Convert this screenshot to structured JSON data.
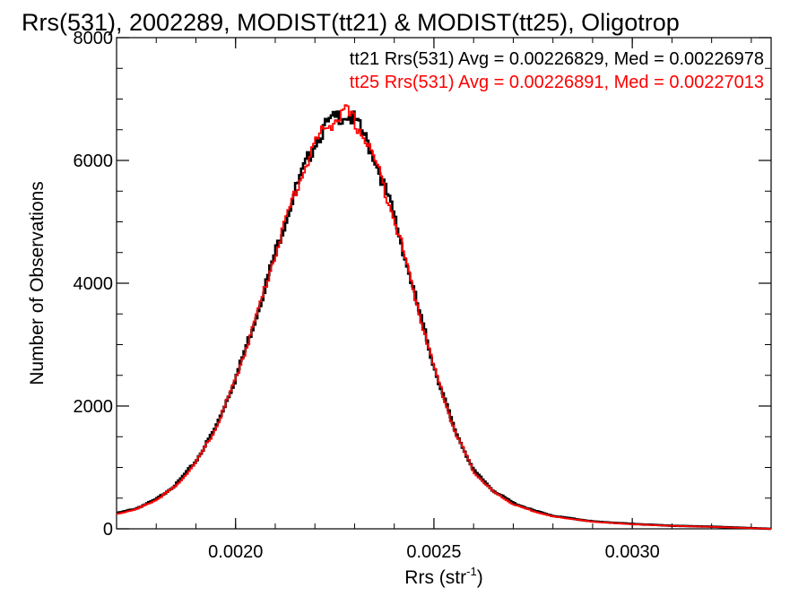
{
  "chart_data": {
    "type": "line",
    "step": true,
    "title": "Rrs(531), 2002289, MODIST(tt21) & MODIST(tt25), Oligotrop",
    "xlabel": "Rrs (str",
    "xlabel_sup": "-1",
    "xlabel_close": ")",
    "ylabel": "Number of Observations",
    "xlim": [
      0.0017,
      0.00335
    ],
    "ylim": [
      0,
      8000
    ],
    "xticks": [
      0.002,
      0.0025,
      0.003
    ],
    "xtick_labels": [
      "0.0020",
      "0.0025",
      "0.0030"
    ],
    "yticks": [
      0,
      2000,
      4000,
      6000,
      8000
    ],
    "ytick_labels": [
      "0",
      "2000",
      "4000",
      "6000",
      "8000"
    ],
    "grid": false,
    "legend": "top-right",
    "colors": {
      "tt21": "#000000",
      "tt25": "#ff0000"
    },
    "series": [
      {
        "name": "tt21",
        "label": "tt21 Rrs(531) Avg = 0.00226829, Med = 0.00226978",
        "x": [
          0.0017,
          0.00175,
          0.0018,
          0.00185,
          0.0019,
          0.00195,
          0.002,
          0.00205,
          0.0021,
          0.00215,
          0.0022,
          0.00223,
          0.00226,
          0.00228,
          0.0023,
          0.00232,
          0.00235,
          0.0024,
          0.00245,
          0.0025,
          0.00255,
          0.0026,
          0.00265,
          0.0027,
          0.00275,
          0.0028,
          0.0029,
          0.003,
          0.0031,
          0.0032,
          0.00335
        ],
        "y": [
          250,
          330,
          480,
          720,
          1100,
          1650,
          2450,
          3420,
          4500,
          5500,
          6300,
          6580,
          6720,
          6750,
          6650,
          6450,
          6050,
          5100,
          3850,
          2650,
          1650,
          950,
          620,
          420,
          300,
          210,
          120,
          80,
          50,
          35,
          0
        ]
      },
      {
        "name": "tt25",
        "label": "tt25 Rrs(531) Avg = 0.00226891, Med = 0.00227013",
        "x": [
          0.0017,
          0.00175,
          0.0018,
          0.00185,
          0.0019,
          0.00195,
          0.002,
          0.00205,
          0.0021,
          0.00215,
          0.0022,
          0.00223,
          0.00226,
          0.00228,
          0.0023,
          0.00232,
          0.00235,
          0.0024,
          0.00245,
          0.0025,
          0.00255,
          0.0026,
          0.00265,
          0.0027,
          0.00275,
          0.0028,
          0.0029,
          0.003,
          0.0031,
          0.0032,
          0.00335
        ],
        "y": [
          240,
          320,
          470,
          700,
          1080,
          1630,
          2430,
          3400,
          4480,
          5480,
          6280,
          6560,
          6700,
          6780,
          6630,
          6430,
          6030,
          5080,
          3830,
          2630,
          1630,
          930,
          600,
          400,
          290,
          200,
          115,
          75,
          48,
          32,
          0
        ]
      }
    ]
  }
}
